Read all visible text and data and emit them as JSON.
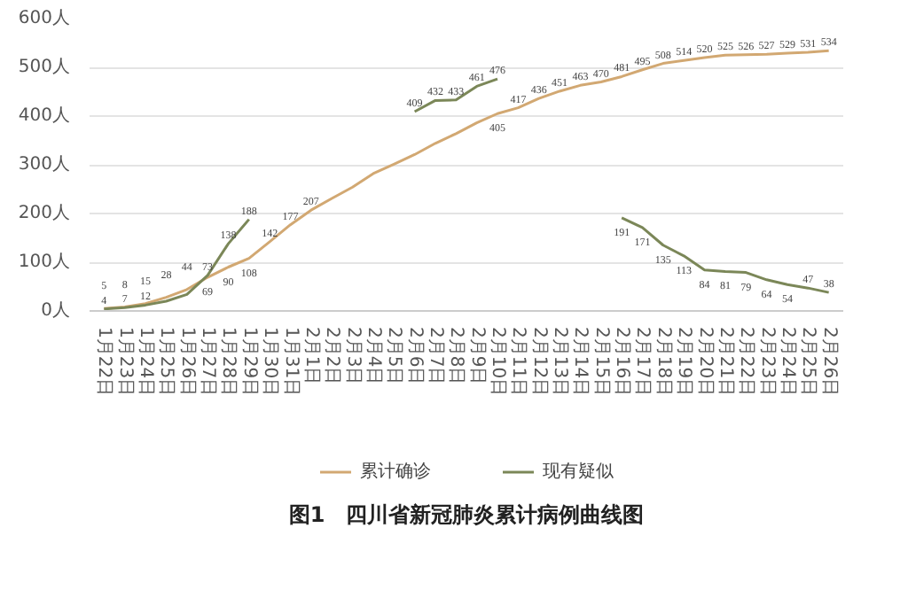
{
  "chart_data": {
    "type": "line",
    "categories": [
      "1月22日",
      "1月23日",
      "1月24日",
      "1月25日",
      "1月26日",
      "1月27日",
      "1月28日",
      "1月29日",
      "1月30日",
      "1月31日",
      "2月1日",
      "2月2日",
      "2月3日",
      "2月4日",
      "2月5日",
      "2月6日",
      "2月7日",
      "2月8日",
      "2月9日",
      "2月10日",
      "2月11日",
      "2月12日",
      "2月13日",
      "2月14日",
      "2月15日",
      "2月16日",
      "2月17日",
      "2月18日",
      "2月19日",
      "2月20日",
      "2月21日",
      "2月22日",
      "2月23日",
      "2月24日",
      "2月25日",
      "2月26日"
    ],
    "series": [
      {
        "name": "累计确诊",
        "color": "#d2a872",
        "values": [
          5,
          8,
          15,
          28,
          44,
          69,
          90,
          108,
          142,
          177,
          207,
          231,
          254,
          282,
          301,
          321,
          344,
          364,
          386,
          405,
          417,
          436,
          451,
          463,
          470,
          481,
          495,
          508,
          514,
          520,
          525,
          526,
          527,
          529,
          531,
          534
        ],
        "value_labels": [
          "5",
          "8",
          "15",
          "28",
          "44",
          "69",
          "90",
          "108",
          "142",
          "177",
          "207",
          null,
          null,
          null,
          null,
          null,
          null,
          null,
          null,
          "405",
          "417",
          "436",
          "451",
          "463",
          "470",
          "481",
          "495",
          "508",
          "514",
          "520",
          "525",
          "526",
          "527",
          "529",
          "531",
          "534"
        ]
      },
      {
        "name": "现有疑似",
        "color": "#7b8758",
        "values": [
          4,
          7,
          12,
          20,
          34,
          73,
          138,
          188,
          null,
          null,
          null,
          null,
          null,
          null,
          null,
          409,
          432,
          433,
          461,
          476,
          null,
          null,
          null,
          null,
          null,
          191,
          171,
          135,
          113,
          84,
          81,
          79,
          64,
          54,
          47,
          38
        ],
        "value_labels": [
          "4",
          "7",
          "12",
          null,
          null,
          "73",
          "138",
          "188",
          null,
          null,
          null,
          null,
          null,
          null,
          null,
          "409",
          "432",
          "433",
          "461",
          "476",
          null,
          null,
          null,
          null,
          null,
          "191",
          "171",
          "135",
          "113",
          "84",
          "81",
          "79",
          "64",
          "54",
          "47",
          "38"
        ]
      }
    ],
    "ylim": [
      0,
      600
    ],
    "yticks": [
      {
        "value": 0,
        "label": "0人"
      },
      {
        "value": 100,
        "label": "100人"
      },
      {
        "value": 200,
        "label": "200人"
      },
      {
        "value": 300,
        "label": "300人"
      },
      {
        "value": 400,
        "label": "400人"
      },
      {
        "value": 500,
        "label": "500人"
      },
      {
        "value": 600,
        "label": "600人"
      }
    ],
    "grid": "y",
    "legend": "bottom",
    "marker": "none",
    "line_style": "solid",
    "annotations": [
      "图1　四川省新冠肺炎累计病例曲线图"
    ]
  }
}
